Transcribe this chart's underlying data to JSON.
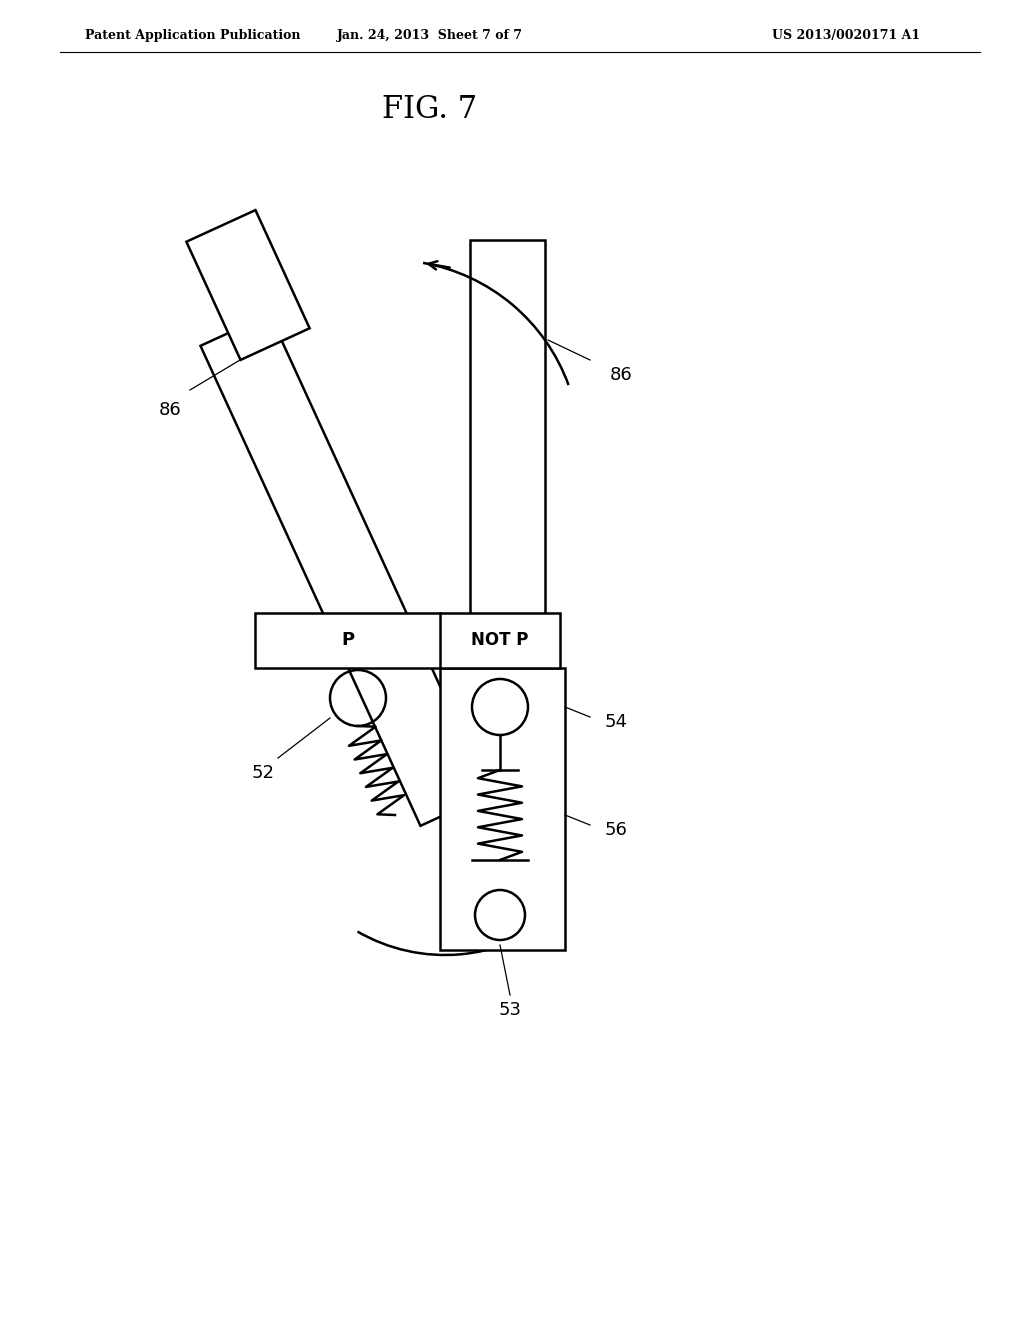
{
  "bg_color": "#ffffff",
  "line_color": "#000000",
  "title": "FIG. 7",
  "header_left": "Patent Application Publication",
  "header_center": "Jan. 24, 2013  Sheet 7 of 7",
  "header_right": "US 2013/0020171 A1",
  "label_86_left": "86",
  "label_86_right": "86",
  "label_52": "52",
  "label_54": "54",
  "label_56": "56",
  "label_53": "53",
  "label_P": "P",
  "label_NOTP": "NOT P",
  "fig_title_fontsize": 20,
  "header_fontsize": 9,
  "label_fontsize": 13
}
